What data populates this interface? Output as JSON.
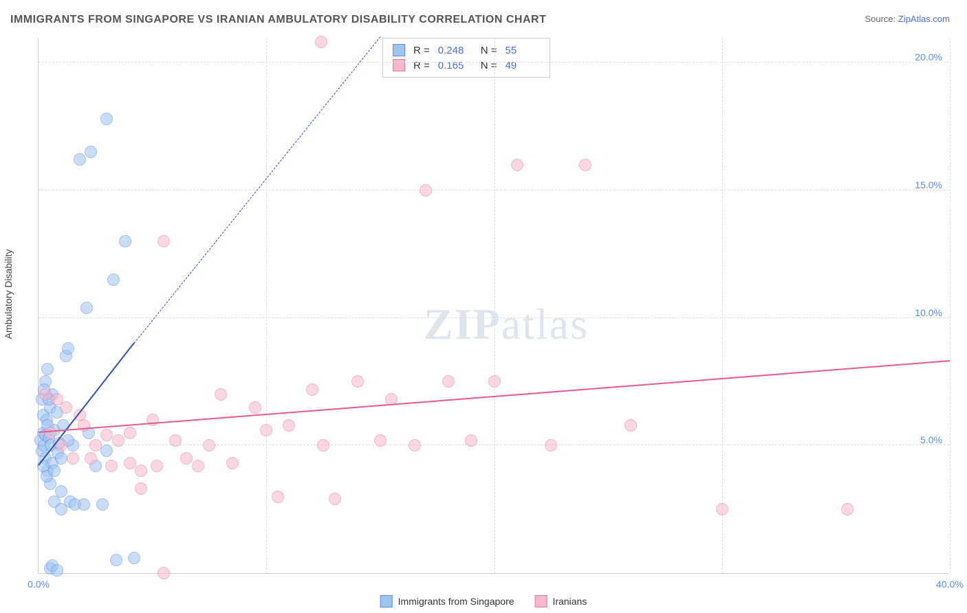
{
  "title": "IMMIGRANTS FROM SINGAPORE VS IRANIAN AMBULATORY DISABILITY CORRELATION CHART",
  "source_prefix": "Source: ",
  "source_link": "ZipAtlas.com",
  "y_axis_label": "Ambulatory Disability",
  "watermark_a": "ZIP",
  "watermark_b": "atlas",
  "chart": {
    "type": "scatter",
    "xlim": [
      0,
      40
    ],
    "ylim": [
      0,
      21
    ],
    "x_ticks": [
      0,
      10,
      20,
      30,
      40
    ],
    "x_tick_labels": [
      "0.0%",
      "",
      "",
      "",
      "40.0%"
    ],
    "y_ticks": [
      5,
      10,
      15,
      20
    ],
    "y_tick_labels": [
      "5.0%",
      "10.0%",
      "15.0%",
      "20.0%"
    ],
    "grid_color": "#dddddd",
    "background_color": "#ffffff",
    "marker_radius": 9,
    "marker_opacity": 0.55,
    "marker_stroke_width": 1.5,
    "series": [
      {
        "name": "Immigrants from Singapore",
        "color_fill": "#9ec4ef",
        "color_stroke": "#5b8def",
        "r_value": "0.248",
        "n_value": "55",
        "trend": {
          "x1": 0,
          "y1": 4.2,
          "x2": 4.2,
          "y2": 9.0,
          "color": "#2a4fbf",
          "extrapolate_to_x": 15.0,
          "extrapolate_to_y": 21.0
        },
        "points": [
          [
            0.1,
            5.2
          ],
          [
            0.15,
            4.8
          ],
          [
            0.2,
            5.5
          ],
          [
            0.2,
            6.2
          ],
          [
            0.25,
            5.0
          ],
          [
            0.3,
            5.4
          ],
          [
            0.3,
            4.5
          ],
          [
            0.35,
            6.0
          ],
          [
            0.4,
            5.8
          ],
          [
            0.4,
            4.0
          ],
          [
            0.45,
            5.3
          ],
          [
            0.5,
            6.5
          ],
          [
            0.5,
            3.5
          ],
          [
            0.55,
            5.0
          ],
          [
            0.6,
            4.3
          ],
          [
            0.6,
            7.0
          ],
          [
            0.7,
            5.6
          ],
          [
            0.7,
            2.8
          ],
          [
            0.8,
            6.3
          ],
          [
            0.85,
            4.7
          ],
          [
            0.9,
            5.1
          ],
          [
            1.0,
            3.2
          ],
          [
            1.0,
            2.5
          ],
          [
            1.2,
            8.5
          ],
          [
            1.3,
            8.8
          ],
          [
            1.4,
            2.8
          ],
          [
            1.5,
            5.0
          ],
          [
            1.6,
            2.7
          ],
          [
            1.8,
            16.2
          ],
          [
            2.0,
            2.7
          ],
          [
            2.1,
            10.4
          ],
          [
            2.2,
            5.5
          ],
          [
            2.3,
            16.5
          ],
          [
            2.5,
            4.2
          ],
          [
            3.0,
            17.8
          ],
          [
            3.0,
            4.8
          ],
          [
            3.3,
            11.5
          ],
          [
            3.4,
            0.5
          ],
          [
            3.8,
            13.0
          ],
          [
            4.2,
            0.6
          ],
          [
            0.3,
            7.5
          ],
          [
            0.4,
            8.0
          ],
          [
            0.5,
            0.2
          ],
          [
            0.6,
            0.3
          ],
          [
            0.8,
            0.1
          ],
          [
            1.1,
            5.8
          ],
          [
            0.2,
            4.2
          ],
          [
            0.15,
            6.8
          ],
          [
            0.25,
            7.2
          ],
          [
            0.35,
            3.8
          ],
          [
            0.45,
            6.8
          ],
          [
            0.7,
            4.0
          ],
          [
            1.0,
            4.5
          ],
          [
            1.3,
            5.2
          ],
          [
            2.8,
            2.7
          ]
        ]
      },
      {
        "name": "Iranians",
        "color_fill": "#f7b8c9",
        "color_stroke": "#e97ba5",
        "r_value": "0.165",
        "n_value": "49",
        "trend": {
          "x1": 0,
          "y1": 5.5,
          "x2": 40,
          "y2": 8.3,
          "color": "#e85a8f"
        },
        "points": [
          [
            0.3,
            7.0
          ],
          [
            0.5,
            5.5
          ],
          [
            0.8,
            6.8
          ],
          [
            1.0,
            5.0
          ],
          [
            1.2,
            6.5
          ],
          [
            1.5,
            4.5
          ],
          [
            2.0,
            5.8
          ],
          [
            2.3,
            4.5
          ],
          [
            2.5,
            5.0
          ],
          [
            3.0,
            5.4
          ],
          [
            3.2,
            4.2
          ],
          [
            3.5,
            5.2
          ],
          [
            4.0,
            5.5
          ],
          [
            4.0,
            4.3
          ],
          [
            4.5,
            4.0
          ],
          [
            4.5,
            3.3
          ],
          [
            5.0,
            6.0
          ],
          [
            5.2,
            4.2
          ],
          [
            5.5,
            0.0
          ],
          [
            5.5,
            13.0
          ],
          [
            6.0,
            5.2
          ],
          [
            6.5,
            4.5
          ],
          [
            7.0,
            4.2
          ],
          [
            7.5,
            5.0
          ],
          [
            8.0,
            7.0
          ],
          [
            8.5,
            4.3
          ],
          [
            9.5,
            6.5
          ],
          [
            10.0,
            5.6
          ],
          [
            10.5,
            3.0
          ],
          [
            11.0,
            5.8
          ],
          [
            12.0,
            7.2
          ],
          [
            12.4,
            20.8
          ],
          [
            12.5,
            5.0
          ],
          [
            13.0,
            2.9
          ],
          [
            14.0,
            7.5
          ],
          [
            15.0,
            5.2
          ],
          [
            15.5,
            6.8
          ],
          [
            16.5,
            5.0
          ],
          [
            17.0,
            15.0
          ],
          [
            18.0,
            7.5
          ],
          [
            19.0,
            5.2
          ],
          [
            20.0,
            7.5
          ],
          [
            21.0,
            16.0
          ],
          [
            22.5,
            5.0
          ],
          [
            24.0,
            16.0
          ],
          [
            26.0,
            5.8
          ],
          [
            30.0,
            2.5
          ],
          [
            35.5,
            2.5
          ],
          [
            1.8,
            6.2
          ]
        ]
      }
    ]
  },
  "legend_labels": {
    "r": "R =",
    "n": "N ="
  }
}
